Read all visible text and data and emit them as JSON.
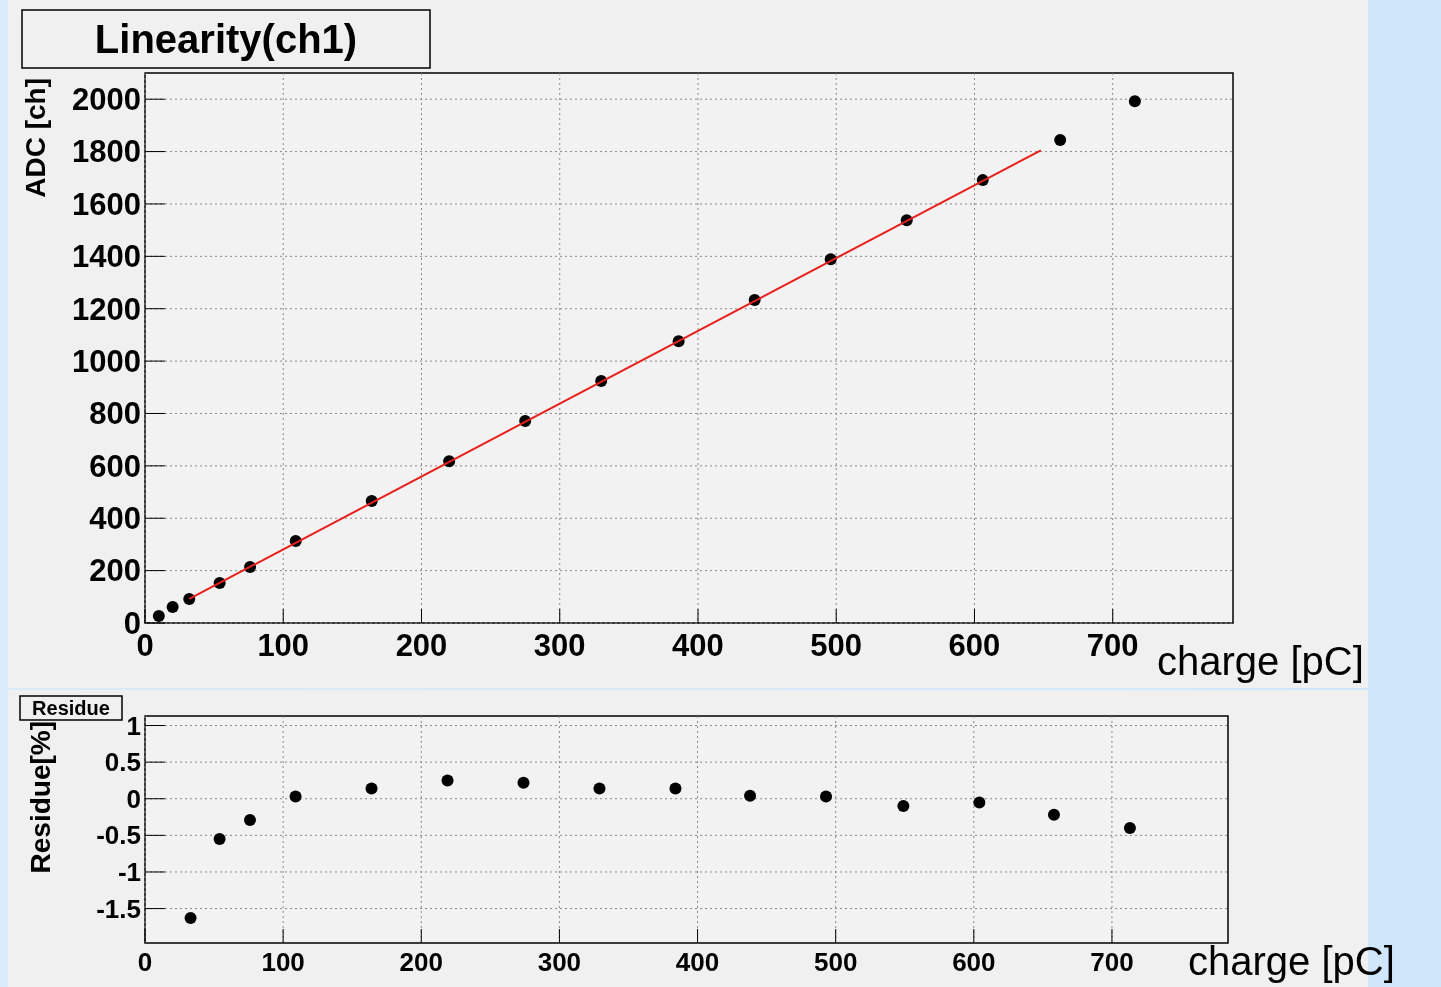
{
  "chart_data": [
    {
      "type": "scatter",
      "title": "Linearity(ch1)",
      "xlabel": "charge [pC]",
      "ylabel": "ADC [ch]",
      "xlim": [
        0,
        787
      ],
      "ylim": [
        0,
        2100
      ],
      "xticks": [
        0,
        100,
        200,
        300,
        400,
        500,
        600,
        700
      ],
      "yticks": [
        0,
        200,
        400,
        600,
        800,
        1000,
        1200,
        1400,
        1600,
        1800,
        2000
      ],
      "grid": true,
      "marker": "circle",
      "series": [
        {
          "color": "#000000",
          "x": [
            10,
            20,
            32,
            54,
            76,
            109,
            164,
            220,
            275,
            330,
            386,
            441,
            496,
            551,
            606,
            662,
            716
          ],
          "values": [
            27,
            61,
            92,
            153,
            214,
            313,
            466,
            618,
            771,
            924,
            1076,
            1233,
            1389,
            1538,
            1691,
            1844,
            1992
          ]
        },
        {
          "type": "line",
          "color": "#e8201c",
          "marker": "none",
          "line_style": "solid",
          "x": [
            32,
            648
          ],
          "values": [
            92,
            1805
          ]
        }
      ]
    },
    {
      "type": "scatter",
      "title": "Residue",
      "xlabel": "charge [pC]",
      "ylabel": "Residue[%]",
      "xlim": [
        0,
        784
      ],
      "ylim": [
        -1.97,
        1.13
      ],
      "xticks": [
        0,
        100,
        200,
        300,
        400,
        500,
        600,
        700
      ],
      "yticks": [
        -1.5,
        -1,
        -0.5,
        0,
        0.5,
        1
      ],
      "grid": true,
      "marker": "circle",
      "series": [
        {
          "color": "#000000",
          "x": [
            33,
            54,
            76,
            109,
            164,
            219,
            274,
            329,
            384,
            438,
            493,
            549,
            604,
            658,
            713
          ],
          "values": [
            -1.63,
            -0.55,
            -0.29,
            0.03,
            0.14,
            0.25,
            0.22,
            0.14,
            0.14,
            0.04,
            0.03,
            -0.1,
            -0.05,
            -0.22,
            -0.4
          ]
        }
      ]
    }
  ]
}
